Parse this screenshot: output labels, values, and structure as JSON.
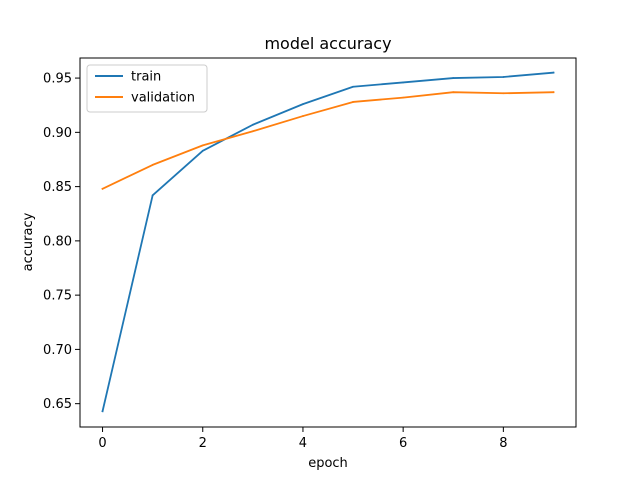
{
  "chart_data": {
    "type": "line",
    "title": "model accuracy",
    "xlabel": "epoch",
    "ylabel": "accuracy",
    "xlim": [
      -0.45,
      9.45
    ],
    "ylim": [
      0.6285,
      0.9685
    ],
    "xticks": [
      0,
      2,
      4,
      6,
      8
    ],
    "yticks": [
      0.65,
      0.7,
      0.75,
      0.8,
      0.85,
      0.9,
      0.95
    ],
    "xtick_labels": [
      "0",
      "2",
      "4",
      "6",
      "8"
    ],
    "ytick_labels": [
      "0.65",
      "0.70",
      "0.75",
      "0.80",
      "0.85",
      "0.90",
      "0.95"
    ],
    "grid": false,
    "legend_position": "upper-left",
    "x": [
      0,
      1,
      2,
      3,
      4,
      5,
      6,
      7,
      8,
      9
    ],
    "series": [
      {
        "name": "train",
        "color": "#1f77b4",
        "values": [
          0.643,
          0.842,
          0.883,
          0.907,
          0.926,
          0.942,
          0.946,
          0.95,
          0.951,
          0.955
        ]
      },
      {
        "name": "validation",
        "color": "#ff7f0e",
        "values": [
          0.848,
          0.87,
          0.888,
          0.901,
          0.915,
          0.928,
          0.932,
          0.937,
          0.936,
          0.937
        ]
      }
    ]
  }
}
